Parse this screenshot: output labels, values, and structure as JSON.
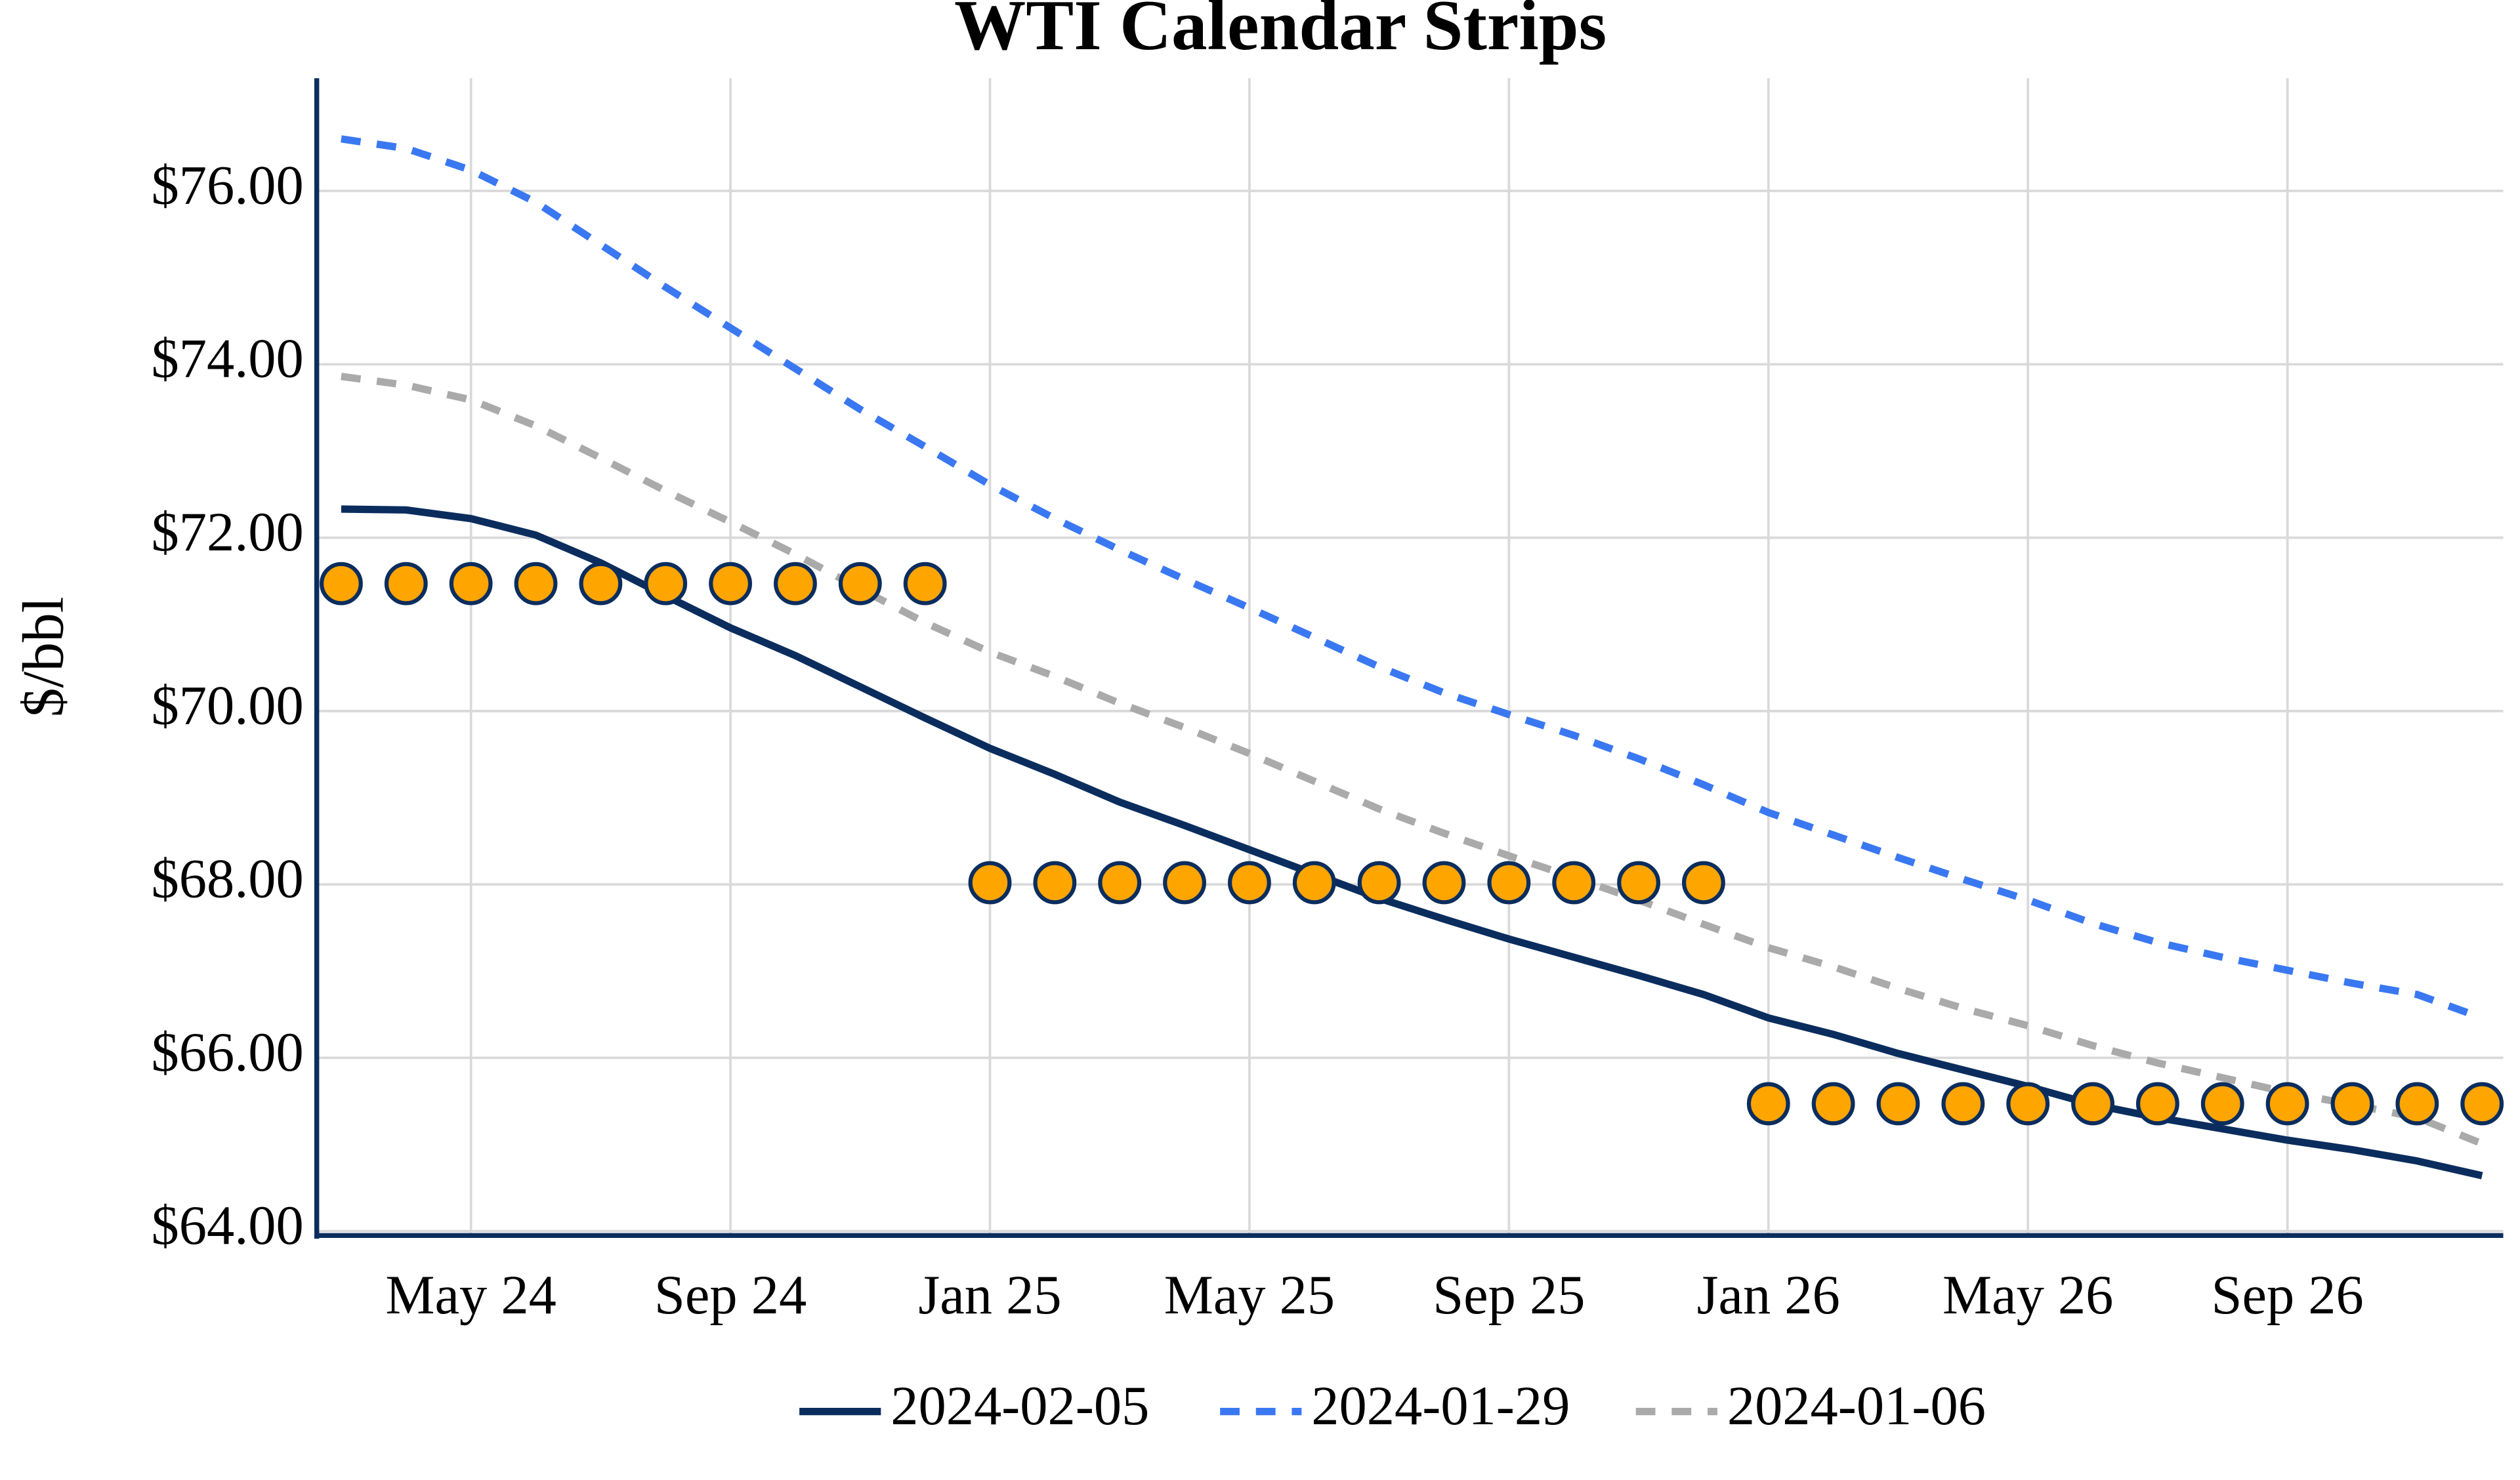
{
  "chart_data": {
    "type": "line",
    "title": "WTI Calendar Strips",
    "y_label": "$/bbl",
    "categories": [
      null,
      null,
      "May 24",
      null,
      null,
      null,
      "Sep 24",
      null,
      null,
      null,
      "Jan 25",
      null,
      null,
      null,
      "May 25",
      null,
      null,
      null,
      "Sep 25",
      null,
      null,
      null,
      "Jan 26",
      null,
      null,
      null,
      "May 26",
      null,
      null,
      null,
      "Sep 26",
      null,
      null,
      null
    ],
    "series": [
      {
        "name": "2024-02-05",
        "color": "#0b2d5e",
        "line_style": "solid",
        "values": [
          72.33,
          72.32,
          72.22,
          72.03,
          71.71,
          71.33,
          70.96,
          70.64,
          70.28,
          69.92,
          69.57,
          69.27,
          68.95,
          68.68,
          68.4,
          68.12,
          67.84,
          67.6,
          67.37,
          67.16,
          66.95,
          66.73,
          66.46,
          66.27,
          66.05,
          65.86,
          65.67,
          65.46,
          65.31,
          65.18,
          65.05,
          64.94,
          64.81,
          64.64
        ]
      },
      {
        "name": "2024-01-29",
        "color": "#3a78f2",
        "line_style": "dashed",
        "values": [
          76.6,
          76.49,
          76.24,
          75.87,
          75.38,
          74.89,
          74.42,
          73.95,
          73.48,
          73.05,
          72.61,
          72.22,
          71.86,
          71.52,
          71.19,
          70.85,
          70.51,
          70.21,
          69.96,
          69.72,
          69.45,
          69.15,
          68.83,
          68.57,
          68.31,
          68.06,
          67.82,
          67.55,
          67.33,
          67.16,
          67.01,
          66.86,
          66.73,
          66.46
        ]
      },
      {
        "name": "2024-01-06",
        "color": "#aaaaaa",
        "line_style": "dashed",
        "values": [
          73.86,
          73.76,
          73.59,
          73.29,
          72.92,
          72.54,
          72.18,
          71.81,
          71.41,
          71.02,
          70.68,
          70.4,
          70.09,
          69.81,
          69.51,
          69.19,
          68.87,
          68.59,
          68.33,
          68.08,
          67.82,
          67.54,
          67.27,
          67.05,
          66.8,
          66.57,
          66.37,
          66.14,
          65.94,
          65.77,
          65.6,
          65.46,
          65.31,
          65.01
        ]
      }
    ],
    "strip_markers": {
      "color": "#ffa500",
      "edge_color": "#0b2d5e",
      "values": [
        71.47,
        71.47,
        71.47,
        71.47,
        71.47,
        71.47,
        71.47,
        71.47,
        71.47,
        71.47,
        68.02,
        68.02,
        68.02,
        68.02,
        68.02,
        68.02,
        68.02,
        68.02,
        68.02,
        68.02,
        68.02,
        68.02,
        65.47,
        65.47,
        65.47,
        65.47,
        65.47,
        65.47,
        65.47,
        65.47,
        65.47,
        65.47,
        65.47,
        65.47
      ]
    },
    "ylim": [
      63.95,
      77.3
    ],
    "yticks": [
      {
        "value": 64,
        "label": "$64.00"
      },
      {
        "value": 66,
        "label": "$66.00"
      },
      {
        "value": 68,
        "label": "$68.00"
      },
      {
        "value": 70,
        "label": "$70.00"
      },
      {
        "value": 72,
        "label": "$72.00"
      },
      {
        "value": 74,
        "label": "$74.00"
      },
      {
        "value": 76,
        "label": "$76.00"
      }
    ],
    "grid": true,
    "legend": "bottom"
  }
}
